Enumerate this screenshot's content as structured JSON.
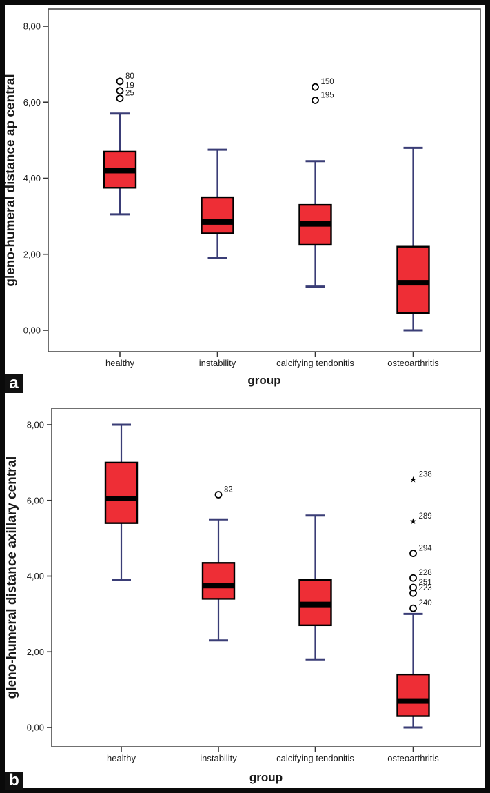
{
  "figure": {
    "panel_a_label": "a",
    "panel_b_label": "b",
    "colors": {
      "box_fill": "#ee2e36",
      "box_border": "#000000",
      "median": "#000000",
      "whisker": "#3a3d76",
      "frame": "#4d4d4d",
      "tick": "#333333",
      "text": "#1a1a1a",
      "outlier_fill": "#ffffff"
    }
  },
  "chart_data": [
    {
      "type": "boxplot",
      "panel": "a",
      "title": "",
      "xlabel": "group",
      "ylabel": "gleno-humeral distance ap central",
      "ylim": [
        -0.55,
        8.45
      ],
      "grid": false,
      "yticks": [
        0,
        2,
        4,
        6,
        8
      ],
      "ytick_labels": [
        "0,00",
        "2,00",
        "4,00",
        "6,00",
        "8,00"
      ],
      "categories": [
        "healthy",
        "instability",
        "calcifying tendonitis",
        "osteoarthritis"
      ],
      "boxes": [
        {
          "category": "healthy",
          "whisker_low": 3.05,
          "q1": 3.75,
          "median": 4.2,
          "q3": 4.7,
          "whisker_high": 5.7,
          "outliers": [
            {
              "value": 6.1,
              "label": "25",
              "marker": "circle"
            },
            {
              "value": 6.3,
              "label": "19",
              "marker": "circle"
            },
            {
              "value": 6.55,
              "label": "80",
              "marker": "circle"
            }
          ]
        },
        {
          "category": "instability",
          "whisker_low": 1.9,
          "q1": 2.55,
          "median": 2.85,
          "q3": 3.5,
          "whisker_high": 4.75,
          "outliers": []
        },
        {
          "category": "calcifying tendonitis",
          "whisker_low": 1.15,
          "q1": 2.25,
          "median": 2.8,
          "q3": 3.3,
          "whisker_high": 4.45,
          "outliers": [
            {
              "value": 6.05,
              "label": "195",
              "marker": "circle"
            },
            {
              "value": 6.4,
              "label": "150",
              "marker": "circle"
            }
          ]
        },
        {
          "category": "osteoarthritis",
          "whisker_low": 0.0,
          "q1": 0.45,
          "median": 1.25,
          "q3": 2.2,
          "whisker_high": 4.8,
          "outliers": []
        }
      ]
    },
    {
      "type": "boxplot",
      "panel": "b",
      "title": "",
      "xlabel": "group",
      "ylabel": "gleno-humeral distance axillary central",
      "ylim": [
        -0.55,
        8.45
      ],
      "grid": false,
      "yticks": [
        0,
        2,
        4,
        6,
        8
      ],
      "ytick_labels": [
        "0,00",
        "2,00",
        "4,00",
        "6,00",
        "8,00"
      ],
      "categories": [
        "healthy",
        "instability",
        "calcifying tendonitis",
        "osteoarthritis"
      ],
      "boxes": [
        {
          "category": "healthy",
          "whisker_low": 3.9,
          "q1": 5.4,
          "median": 6.05,
          "q3": 7.0,
          "whisker_high": 8.0,
          "outliers": []
        },
        {
          "category": "instability",
          "whisker_low": 2.3,
          "q1": 3.4,
          "median": 3.75,
          "q3": 4.35,
          "whisker_high": 5.5,
          "outliers": [
            {
              "value": 6.15,
              "label": "82",
              "marker": "circle"
            }
          ]
        },
        {
          "category": "calcifying tendonitis",
          "whisker_low": 1.8,
          "q1": 2.7,
          "median": 3.25,
          "q3": 3.9,
          "whisker_high": 5.6,
          "outliers": []
        },
        {
          "category": "osteoarthritis",
          "whisker_low": 0.0,
          "q1": 0.3,
          "median": 0.7,
          "q3": 1.4,
          "whisker_high": 3.0,
          "outliers": [
            {
              "value": 3.15,
              "label": "240",
              "marker": "circle"
            },
            {
              "value": 3.55,
              "label": "223",
              "marker": "circle"
            },
            {
              "value": 3.7,
              "label": "251",
              "marker": "circle"
            },
            {
              "value": 3.95,
              "label": "228",
              "marker": "circle"
            },
            {
              "value": 4.6,
              "label": "294",
              "marker": "circle"
            },
            {
              "value": 5.45,
              "label": "289",
              "marker": "star"
            },
            {
              "value": 6.55,
              "label": "238",
              "marker": "star"
            }
          ]
        }
      ]
    }
  ]
}
